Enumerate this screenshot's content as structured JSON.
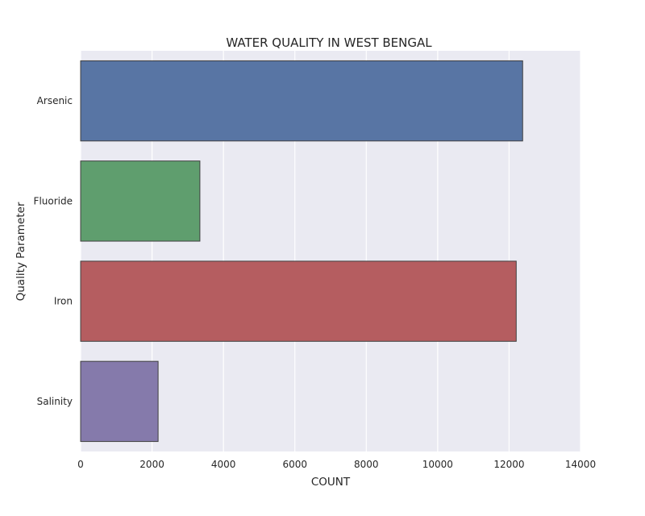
{
  "chart_data": {
    "type": "bar",
    "orientation": "horizontal",
    "title": "WATER QUALITY IN WEST BENGAL",
    "xlabel": "COUNT",
    "ylabel": "Quality Parameter",
    "categories": [
      "Arsenic",
      "Fluoride",
      "Iron",
      "Salinity"
    ],
    "values": [
      12380,
      3340,
      12200,
      2170
    ],
    "xlim": [
      0,
      14000
    ],
    "xticks": [
      0,
      2000,
      4000,
      6000,
      8000,
      10000,
      12000,
      14000
    ],
    "grid": true,
    "legend": "none",
    "colors": [
      "#5875a4",
      "#5f9e6e",
      "#b55d60",
      "#857aab"
    ],
    "plot_background": "#eaeaf2",
    "edge_color": "#3f3f3f"
  }
}
